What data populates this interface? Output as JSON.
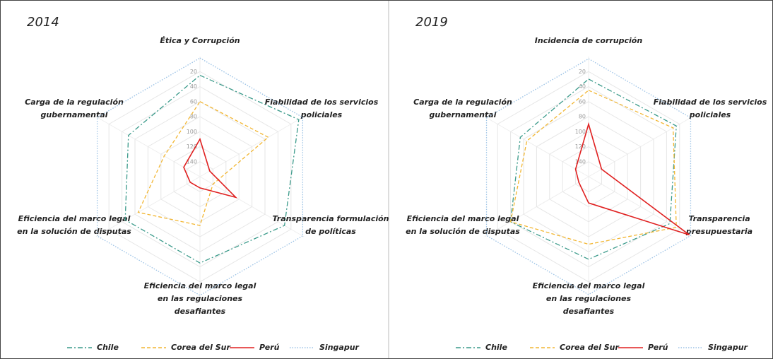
{
  "chart_data": [
    {
      "type": "radar",
      "title": "2014",
      "categories": [
        [
          "Ética y Corrupción"
        ],
        [
          "Fiabilidad de los servicios",
          "policiales"
        ],
        [
          "Transparencia formulación",
          "de políticas"
        ],
        [
          "Eficiencia del marco legal",
          "en las regulaciones",
          "desafiantes"
        ],
        [
          "Eficiencia del marco legal",
          "en la solución de disputas"
        ],
        [
          "Carga de la regulación",
          "gubernamental"
        ]
      ],
      "rlim": [
        160,
        0
      ],
      "rticks": [
        20,
        40,
        60,
        80,
        100,
        120,
        140
      ],
      "grid": true,
      "series": [
        {
          "name": "Chile",
          "color": "#3a9a8a",
          "dash": "dashdot",
          "values": [
            25,
            8,
            30,
            45,
            45,
            50
          ]
        },
        {
          "name": "Corea del Sur",
          "color": "#f2b632",
          "dash": "dashed",
          "values": [
            60,
            55,
            140,
            95,
            65,
            105
          ]
        },
        {
          "name": "Perú",
          "color": "#e02020",
          "dash": "solid",
          "values": [
            110,
            145,
            105,
            145,
            145,
            135
          ]
        },
        {
          "name": "Singapur",
          "color": "#9dc3e6",
          "dash": "dotted",
          "values": [
            2,
            2,
            2,
            2,
            2,
            2
          ]
        }
      ]
    },
    {
      "type": "radar",
      "title": "2019",
      "categories": [
        [
          "Incidencia de corrupción"
        ],
        [
          "Fiabilidad de los servicios",
          "policiales"
        ],
        [
          "Transparencia",
          "presupuestaria"
        ],
        [
          "Eficiencia del marco legal",
          "en las regulaciones",
          "desafiantes"
        ],
        [
          "Eficiencia del marco legal",
          "en la solución de disputas"
        ],
        [
          "Carga de la regulación",
          "gubernamental"
        ]
      ],
      "rlim": [
        160,
        0
      ],
      "rticks": [
        20,
        40,
        60,
        80,
        100,
        120,
        140
      ],
      "grid": true,
      "series": [
        {
          "name": "Chile",
          "color": "#3a9a8a",
          "dash": "dashdot",
          "values": [
            30,
            25,
            35,
            50,
            40,
            55
          ]
        },
        {
          "name": "Corea del Sur",
          "color": "#f2b632",
          "dash": "dashed",
          "values": [
            45,
            30,
            25,
            70,
            40,
            65
          ]
        },
        {
          "name": "Perú",
          "color": "#e02020",
          "dash": "solid",
          "values": [
            90,
            140,
            5,
            125,
            145,
            140
          ]
        },
        {
          "name": "Singapur",
          "color": "#9dc3e6",
          "dash": "dotted",
          "values": [
            3,
            3,
            3,
            3,
            3,
            3
          ]
        }
      ]
    }
  ]
}
